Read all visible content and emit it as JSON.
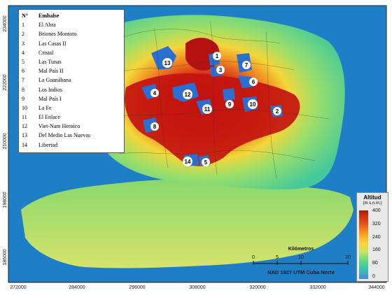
{
  "legend": {
    "header_num": "N°",
    "header_name": "Embalse",
    "items": [
      {
        "num": "1",
        "name": "El Abra"
      },
      {
        "num": "2",
        "name": "Briones Montoto"
      },
      {
        "num": "3",
        "name": "Las Casas II"
      },
      {
        "num": "4",
        "name": "Cristal"
      },
      {
        "num": "5",
        "name": "Las Tunas"
      },
      {
        "num": "6",
        "name": "Mal País II"
      },
      {
        "num": "7",
        "name": "La Guanábana"
      },
      {
        "num": "8",
        "name": "Los Indios"
      },
      {
        "num": "9",
        "name": "Mal País I"
      },
      {
        "num": "10",
        "name": "La Fe"
      },
      {
        "num": "11",
        "name": "El Enlace"
      },
      {
        "num": "12",
        "name": "Viet-Nam Heroico"
      },
      {
        "num": "13",
        "name": "Del Medio Las Nuevas"
      },
      {
        "num": "14",
        "name": "Libertad"
      }
    ]
  },
  "reservoir_labels": [
    "1",
    "2",
    "3",
    "4",
    "5",
    "6",
    "7",
    "8",
    "9",
    "10",
    "11",
    "12",
    "13",
    "14"
  ],
  "altitude_legend": {
    "title": "Altitud",
    "units": "(m s.n.m.)",
    "ticks": [
      "400",
      "320",
      "240",
      "160",
      "80",
      "0"
    ]
  },
  "scale_bar": {
    "title": "Kilómetros",
    "ticks": [
      "0",
      "5",
      "10",
      "20"
    ]
  },
  "projection": "NAD 1927 UTM Cuba Norte",
  "x_axis_ticks": [
    "272000",
    "284000",
    "296000",
    "308000",
    "320000",
    "332000",
    "344000"
  ],
  "y_axis_ticks": [
    "234000",
    "222000",
    "210000",
    "198000",
    "186000"
  ],
  "colors": {
    "ocean": "#1f7fc6",
    "lowland": "#7ad67a",
    "midland": "#f3d63a",
    "highland": "#d9341a",
    "peak": "#b01010",
    "reservoir": "#2a6fd1"
  }
}
